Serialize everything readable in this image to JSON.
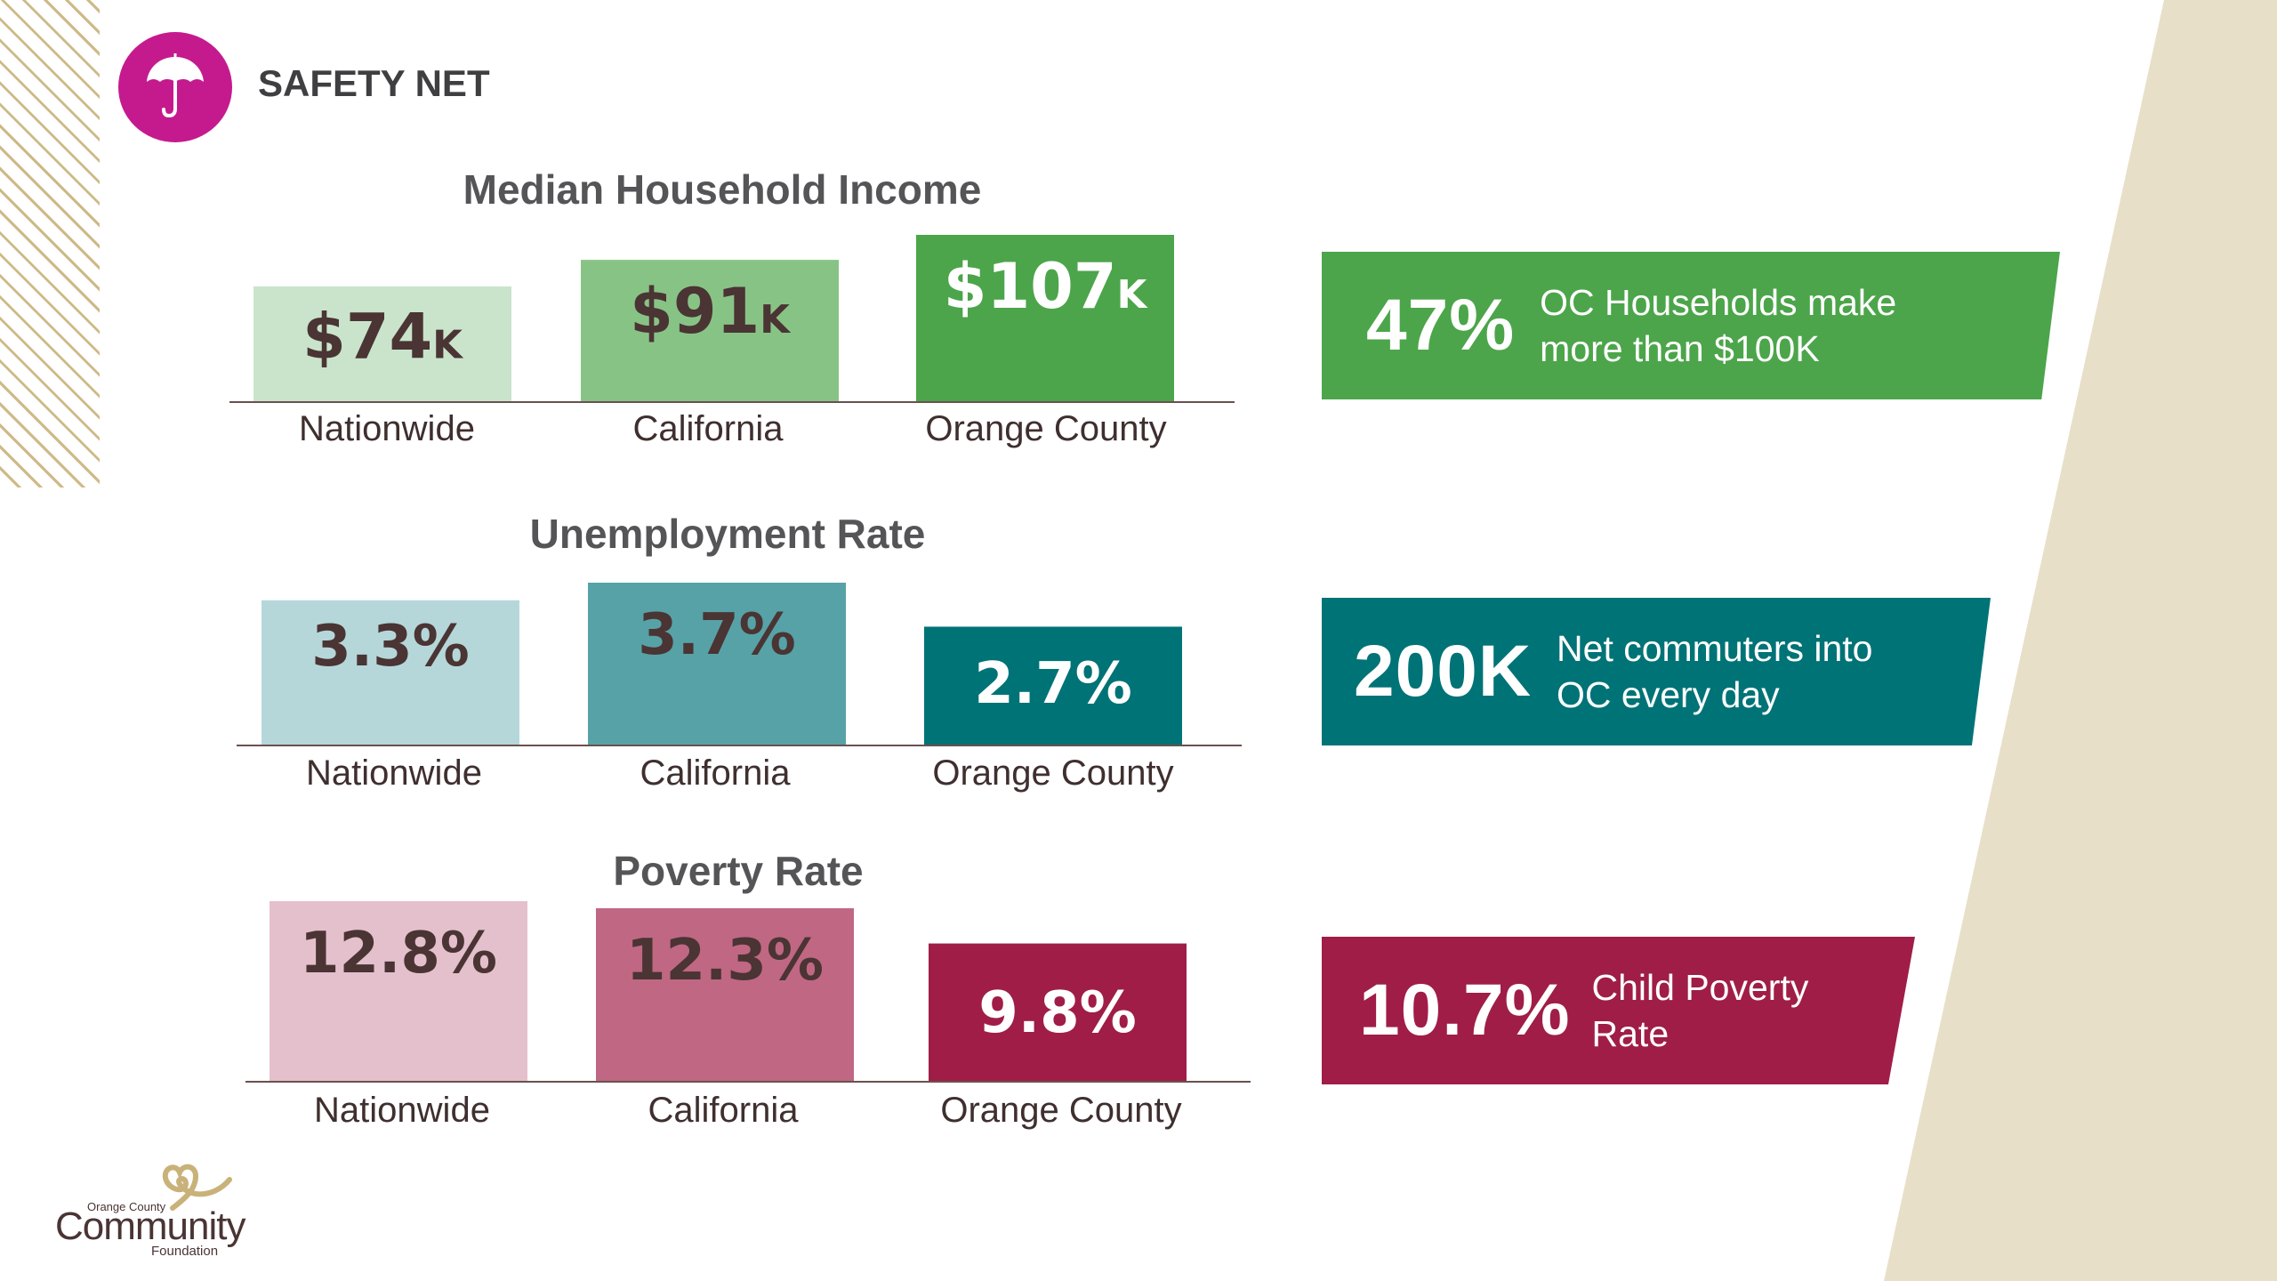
{
  "header": {
    "title": "SAFETY NET",
    "icon": "umbrella-icon",
    "icon_color": "#c51a8e"
  },
  "colors": {
    "beige": "#e7dfc8",
    "stripes": "#c9b27a"
  },
  "chart_data": [
    {
      "type": "bar",
      "title": "Median Household Income",
      "categories": [
        "Nationwide",
        "California",
        "Orange County"
      ],
      "values": [
        74,
        91,
        107
      ],
      "value_labels": [
        "$74",
        "$91",
        "$107"
      ],
      "value_suffix": "K",
      "unit": "thousand USD",
      "colors": [
        "#c9e4cb",
        "#88c386",
        "#4ca54a"
      ],
      "label_colors": [
        "#4a3434",
        "#4a3434",
        "#ffffff"
      ],
      "ylim": [
        0,
        107
      ],
      "grid": false
    },
    {
      "type": "bar",
      "title": "Unemployment Rate",
      "categories": [
        "Nationwide",
        "California",
        "Orange County"
      ],
      "values": [
        3.3,
        3.7,
        2.7
      ],
      "value_labels": [
        "3.3%",
        "3.7%",
        "2.7%"
      ],
      "value_suffix": "",
      "unit": "percent",
      "colors": [
        "#b5d7da",
        "#57a2a6",
        "#007377"
      ],
      "label_colors": [
        "#4a3434",
        "#4a3434",
        "#ffffff"
      ],
      "ylim": [
        0,
        3.7
      ],
      "grid": false
    },
    {
      "type": "bar",
      "title": "Poverty Rate",
      "categories": [
        "Nationwide",
        "California",
        "Orange County"
      ],
      "values": [
        12.8,
        12.3,
        9.8
      ],
      "value_labels": [
        "12.8%",
        "12.3%",
        "9.8%"
      ],
      "value_suffix": "",
      "unit": "percent",
      "colors": [
        "#e4c0cd",
        "#c06784",
        "#a01d48"
      ],
      "label_colors": [
        "#4a3434",
        "#4a3434",
        "#ffffff"
      ],
      "ylim": [
        0,
        12.8
      ],
      "grid": false
    }
  ],
  "callouts": [
    {
      "value": "47%",
      "line1": "OC Households make",
      "line2": "more than $100K",
      "color": "#4ca54a"
    },
    {
      "value": "200K",
      "line1": "Net commuters into",
      "line2": "OC every day",
      "color": "#007377"
    },
    {
      "value": "10.7%",
      "line1": "Child Poverty",
      "line2": "Rate",
      "color": "#a01d48"
    }
  ],
  "logo": {
    "line1": "Orange County",
    "line2": "Community",
    "line3": "Foundation"
  }
}
